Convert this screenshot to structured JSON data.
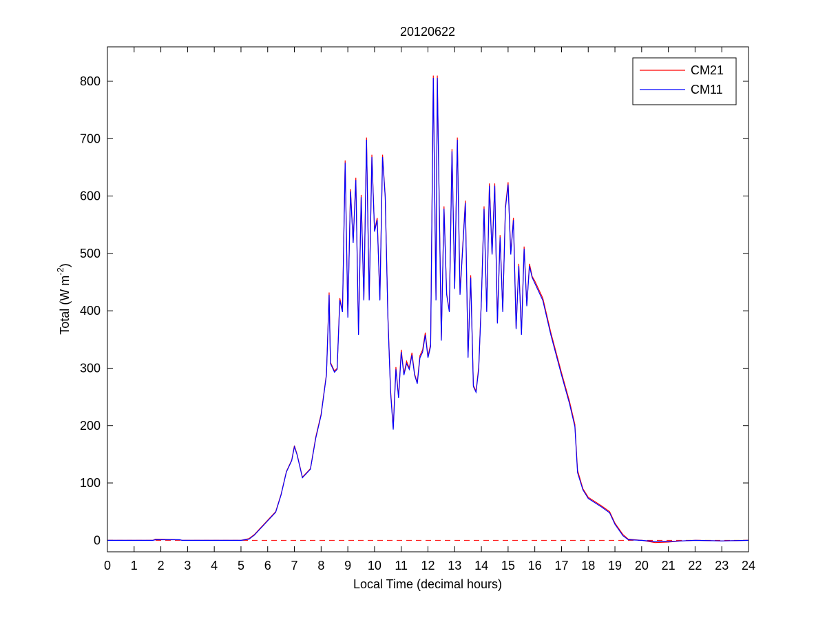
{
  "chart_data": {
    "type": "line",
    "title": "20120622",
    "xlabel": "Local Time (decimal hours)",
    "ylabel": [
      "Total (W m",
      "-2",
      ")"
    ],
    "x": [
      0,
      1.7,
      1.8,
      2.7,
      2.8,
      5,
      5.3,
      5.5,
      5.7,
      6,
      6.3,
      6.5,
      6.7,
      6.9,
      7.0,
      7.1,
      7.3,
      7.5,
      7.6,
      7.8,
      8.0,
      8.2,
      8.3,
      8.35,
      8.5,
      8.6,
      8.7,
      8.8,
      8.9,
      9.0,
      9.1,
      9.2,
      9.3,
      9.4,
      9.5,
      9.6,
      9.7,
      9.8,
      9.9,
      10.0,
      10.1,
      10.2,
      10.3,
      10.4,
      10.5,
      10.6,
      10.7,
      10.8,
      10.9,
      11.0,
      11.1,
      11.2,
      11.3,
      11.4,
      11.5,
      11.6,
      11.7,
      11.8,
      11.9,
      12.0,
      12.1,
      12.2,
      12.3,
      12.35,
      12.5,
      12.6,
      12.7,
      12.8,
      12.9,
      13.0,
      13.1,
      13.2,
      13.3,
      13.4,
      13.5,
      13.6,
      13.7,
      13.8,
      13.9,
      14.0,
      14.1,
      14.2,
      14.3,
      14.4,
      14.5,
      14.6,
      14.7,
      14.8,
      14.9,
      15.0,
      15.1,
      15.2,
      15.3,
      15.4,
      15.5,
      15.6,
      15.7,
      15.8,
      15.9,
      16.0,
      16.3,
      16.6,
      17.0,
      17.3,
      17.5,
      17.6,
      17.8,
      18.0,
      18.5,
      18.8,
      19.0,
      19.3,
      19.5,
      20.0,
      20.5,
      21.0,
      21.5,
      22,
      23,
      24
    ],
    "series": [
      {
        "name": "CM21",
        "color": "#ff0000",
        "values": [
          0,
          0,
          2,
          1,
          0,
          0,
          3,
          10,
          20,
          35,
          50,
          80,
          120,
          140,
          165,
          150,
          110,
          120,
          125,
          180,
          220,
          290,
          432,
          310,
          295,
          300,
          422,
          400,
          662,
          390,
          612,
          520,
          632,
          360,
          602,
          420,
          702,
          420,
          672,
          540,
          562,
          420,
          672,
          600,
          392,
          262,
          196,
          302,
          250,
          332,
          290,
          312,
          300,
          327,
          290,
          275,
          322,
          332,
          362,
          320,
          342,
          810,
          420,
          810,
          350,
          582,
          430,
          400,
          682,
          440,
          702,
          430,
          512,
          592,
          320,
          462,
          270,
          260,
          302,
          420,
          582,
          400,
          622,
          500,
          622,
          380,
          532,
          400,
          582,
          624,
          500,
          562,
          370,
          482,
          360,
          512,
          410,
          482,
          460,
          452,
          422,
          362,
          292,
          242,
          202,
          122,
          90,
          75,
          60,
          50,
          30,
          10,
          2,
          0,
          -4,
          -3,
          -1,
          0,
          -1,
          0
        ]
      },
      {
        "name": "CM11",
        "color": "#0000ff",
        "values": [
          0,
          0,
          1,
          1,
          0,
          0,
          2,
          9,
          19,
          34,
          49,
          79,
          119,
          139,
          163,
          149,
          109,
          119,
          124,
          178,
          218,
          288,
          428,
          308,
          293,
          298,
          418,
          398,
          658,
          388,
          608,
          518,
          628,
          358,
          598,
          418,
          698,
          418,
          668,
          538,
          558,
          418,
          668,
          598,
          388,
          258,
          193,
          298,
          248,
          328,
          288,
          308,
          298,
          323,
          288,
          273,
          318,
          328,
          358,
          318,
          338,
          806,
          418,
          806,
          348,
          578,
          428,
          398,
          678,
          438,
          698,
          428,
          508,
          588,
          318,
          458,
          268,
          258,
          298,
          418,
          578,
          398,
          618,
          498,
          618,
          378,
          528,
          398,
          578,
          620,
          498,
          558,
          368,
          478,
          358,
          508,
          408,
          478,
          458,
          448,
          418,
          358,
          288,
          238,
          198,
          118,
          88,
          73,
          58,
          48,
          28,
          8,
          1,
          0,
          -2,
          -2,
          -1,
          0,
          -1,
          0
        ]
      }
    ],
    "xlim": [
      0,
      24
    ],
    "xticks": [
      0,
      1,
      2,
      3,
      4,
      5,
      6,
      7,
      8,
      9,
      10,
      11,
      12,
      13,
      14,
      15,
      16,
      17,
      18,
      19,
      20,
      21,
      22,
      23,
      24
    ],
    "ylim": [
      -20,
      860
    ],
    "yticks": [
      0,
      100,
      200,
      300,
      400,
      500,
      600,
      700,
      800
    ],
    "reference_line": {
      "value": 0,
      "color": "#ff0000",
      "style": "dashed"
    },
    "grid": false,
    "legend": "upper right"
  }
}
